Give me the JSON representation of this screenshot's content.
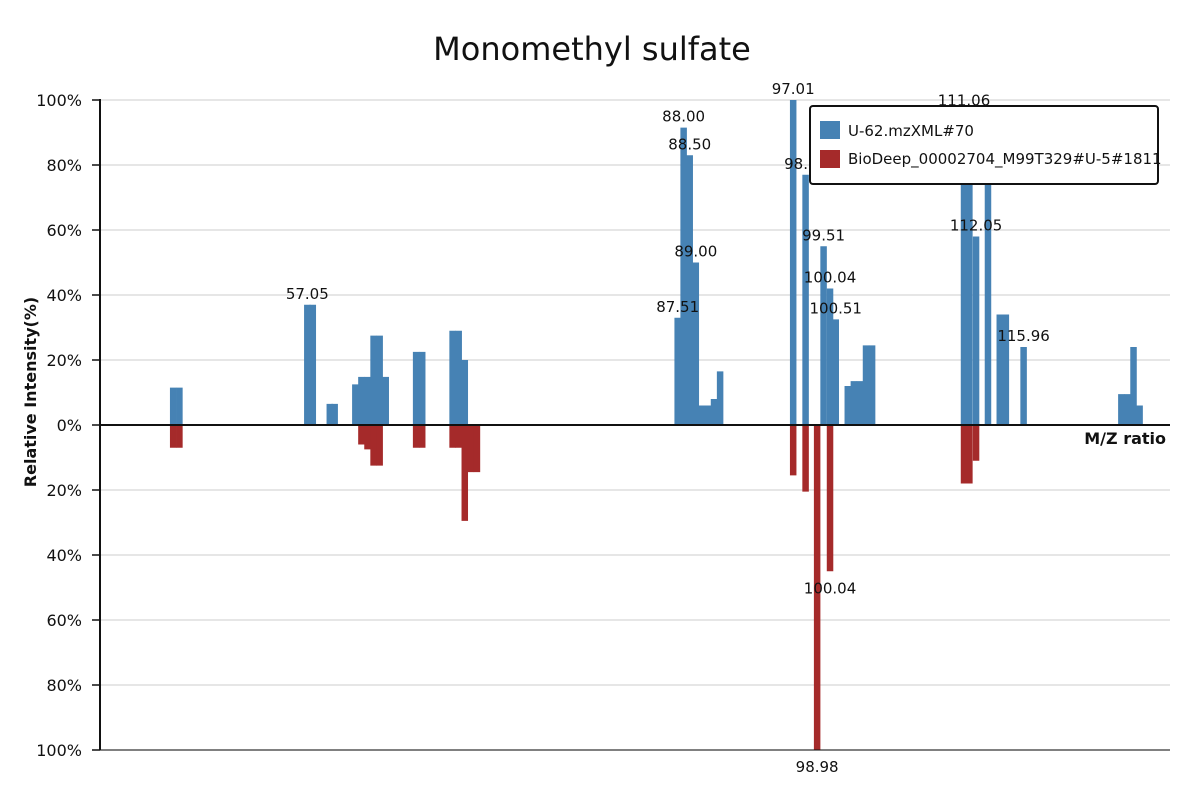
{
  "chart_data": {
    "type": "bar",
    "title": "Monomethyl sulfate",
    "xlabel": "M/Z ratio",
    "ylabel": "Relative Intensity(%)",
    "xlim": [
      40,
      128
    ],
    "yticks": [
      "100%",
      "80%",
      "60%",
      "40%",
      "20%",
      "0%",
      "20%",
      "40%",
      "60%",
      "80%",
      "100%"
    ],
    "grid": true,
    "legend_position": "top-right",
    "colors": {
      "upper": "#4682b4",
      "lower": "#a52a2a"
    },
    "series": [
      {
        "name": "U-62.mzXML#70",
        "direction": "up",
        "peaks": [
          {
            "mz": 46.02,
            "intensity": 11.5
          },
          {
            "mz": 46.53,
            "intensity": 11.5
          },
          {
            "mz": 57.05,
            "intensity": 37.0,
            "label": "57.05"
          },
          {
            "mz": 57.5,
            "intensity": 37.0
          },
          {
            "mz": 58.9,
            "intensity": 6.5
          },
          {
            "mz": 59.3,
            "intensity": 6.5
          },
          {
            "mz": 61.0,
            "intensity": 12.5
          },
          {
            "mz": 61.5,
            "intensity": 14.8
          },
          {
            "mz": 62.0,
            "intensity": 14.8
          },
          {
            "mz": 62.5,
            "intensity": 27.5
          },
          {
            "mz": 63.0,
            "intensity": 27.5
          },
          {
            "mz": 63.5,
            "intensity": 14.8
          },
          {
            "mz": 66.0,
            "intensity": 22.5
          },
          {
            "mz": 66.5,
            "intensity": 22.5
          },
          {
            "mz": 69.0,
            "intensity": 29.0
          },
          {
            "mz": 69.5,
            "intensity": 29.0
          },
          {
            "mz": 70.0,
            "intensity": 20.0
          },
          {
            "mz": 87.51,
            "intensity": 33.0,
            "label": "87.51"
          },
          {
            "mz": 88.0,
            "intensity": 91.5,
            "label": "88.00"
          },
          {
            "mz": 88.5,
            "intensity": 83.0,
            "label": "88.50"
          },
          {
            "mz": 89.0,
            "intensity": 50.0,
            "label": "89.00"
          },
          {
            "mz": 89.5,
            "intensity": 6.0
          },
          {
            "mz": 90.0,
            "intensity": 6.0
          },
          {
            "mz": 90.5,
            "intensity": 8.0
          },
          {
            "mz": 91.0,
            "intensity": 16.5
          },
          {
            "mz": 97.01,
            "intensity": 100.0,
            "label": "97.01"
          },
          {
            "mz": 98.03,
            "intensity": 77.0,
            "label": "98.03"
          },
          {
            "mz": 99.51,
            "intensity": 55.0,
            "label": "99.51"
          },
          {
            "mz": 100.04,
            "intensity": 42.0,
            "label": "100.04"
          },
          {
            "mz": 100.51,
            "intensity": 32.5,
            "label": "100.51"
          },
          {
            "mz": 101.5,
            "intensity": 12.0
          },
          {
            "mz": 102.0,
            "intensity": 13.5
          },
          {
            "mz": 102.5,
            "intensity": 13.5
          },
          {
            "mz": 103.0,
            "intensity": 24.5
          },
          {
            "mz": 103.5,
            "intensity": 24.5
          },
          {
            "mz": 111.06,
            "intensity": 96.5,
            "label": "111.06"
          },
          {
            "mz": 111.5,
            "intensity": 96.5
          },
          {
            "mz": 112.05,
            "intensity": 58.0,
            "label": "112.05"
          },
          {
            "mz": 113.03,
            "intensity": 85.5,
            "label": "113.03"
          },
          {
            "mz": 114.0,
            "intensity": 34.0
          },
          {
            "mz": 114.5,
            "intensity": 34.0
          },
          {
            "mz": 115.96,
            "intensity": 24.0,
            "label": "115.96"
          },
          {
            "mz": 124.0,
            "intensity": 9.5
          },
          {
            "mz": 124.5,
            "intensity": 9.5
          },
          {
            "mz": 125.0,
            "intensity": 24.0
          },
          {
            "mz": 125.5,
            "intensity": 6.0
          }
        ]
      },
      {
        "name": "BioDeep_00002704_M99T329#U-5#1811",
        "direction": "down",
        "peaks": [
          {
            "mz": 46.02,
            "intensity": 7.0
          },
          {
            "mz": 46.53,
            "intensity": 7.0
          },
          {
            "mz": 61.5,
            "intensity": 6.0
          },
          {
            "mz": 62.0,
            "intensity": 7.5
          },
          {
            "mz": 62.5,
            "intensity": 12.5
          },
          {
            "mz": 63.0,
            "intensity": 12.5
          },
          {
            "mz": 66.0,
            "intensity": 7.0
          },
          {
            "mz": 66.5,
            "intensity": 7.0
          },
          {
            "mz": 69.0,
            "intensity": 7.0
          },
          {
            "mz": 69.5,
            "intensity": 7.0
          },
          {
            "mz": 70.0,
            "intensity": 29.5
          },
          {
            "mz": 70.5,
            "intensity": 14.5
          },
          {
            "mz": 71.0,
            "intensity": 14.5
          },
          {
            "mz": 97.01,
            "intensity": 15.5
          },
          {
            "mz": 98.03,
            "intensity": 20.5
          },
          {
            "mz": 98.98,
            "intensity": 100.0,
            "label": "98.98"
          },
          {
            "mz": 100.04,
            "intensity": 45.0,
            "label": "100.04"
          },
          {
            "mz": 111.06,
            "intensity": 18.0
          },
          {
            "mz": 111.5,
            "intensity": 18.0
          },
          {
            "mz": 112.05,
            "intensity": 11.0
          }
        ]
      }
    ]
  }
}
